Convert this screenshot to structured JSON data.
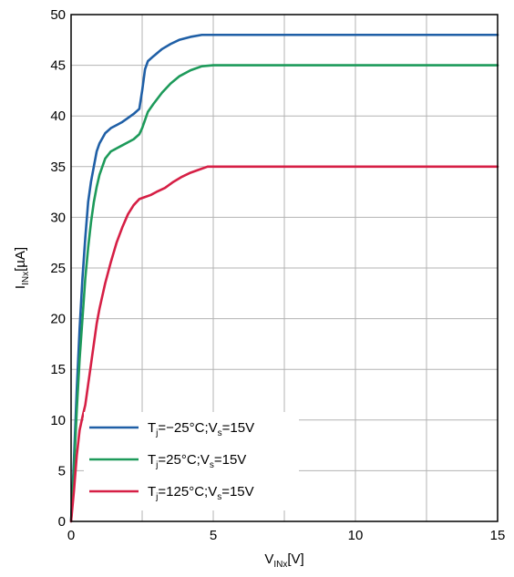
{
  "chart_data": {
    "type": "line",
    "title": "",
    "xlabel": "V_INx [V]",
    "ylabel": "I_INx [µA]",
    "x_axis": {
      "label_main": "V",
      "label_sub": "INx",
      "label_unit": "[V]",
      "range": [
        0,
        15
      ],
      "ticks": [
        0,
        5,
        10,
        15
      ],
      "tick_labels": [
        "0",
        "5",
        "10",
        "15"
      ],
      "grid_step": 2.5
    },
    "y_axis": {
      "label_main": "I",
      "label_sub": "INx",
      "label_unit": "[µA]",
      "range": [
        0,
        50
      ],
      "ticks": [
        0,
        5,
        10,
        15,
        20,
        25,
        30,
        35,
        40,
        45,
        50
      ],
      "tick_labels": [
        "0",
        "5",
        "10",
        "15",
        "20",
        "25",
        "30",
        "35",
        "40",
        "45",
        "50"
      ]
    },
    "grid": true,
    "legend_position": "bottom-left",
    "series": [
      {
        "name": "Tj=−25°C;Vs=15V",
        "legend": {
          "t": "T",
          "j": "j",
          "mid": "=−25°C;V",
          "s": "s",
          "end": "=15V"
        },
        "color": "#1f5fa6",
        "x": [
          0,
          0.1,
          0.2,
          0.3,
          0.4,
          0.5,
          0.6,
          0.7,
          0.8,
          0.9,
          1.0,
          1.2,
          1.4,
          1.6,
          1.8,
          2.0,
          2.2,
          2.4,
          2.5,
          2.6,
          2.7,
          2.9,
          3.2,
          3.5,
          3.8,
          4.2,
          4.6,
          5.0,
          7.5,
          10,
          12.5,
          15
        ],
        "y": [
          0,
          6,
          13,
          19,
          24,
          28,
          31.5,
          33.5,
          35,
          36.5,
          37.3,
          38.3,
          38.8,
          39.1,
          39.4,
          39.8,
          40.2,
          40.7,
          42.5,
          44.6,
          45.4,
          45.9,
          46.6,
          47.1,
          47.5,
          47.8,
          48,
          48,
          48,
          48,
          48,
          48
        ]
      },
      {
        "name": "Tj=25°C;Vs=15V",
        "legend": {
          "t": "T",
          "j": "j",
          "mid": "=25°C;V",
          "s": "s",
          "end": "=15V"
        },
        "color": "#1d9a5a",
        "x": [
          0,
          0.1,
          0.2,
          0.3,
          0.4,
          0.5,
          0.6,
          0.7,
          0.8,
          0.9,
          1.0,
          1.1,
          1.2,
          1.4,
          1.6,
          1.8,
          2.0,
          2.2,
          2.4,
          2.5,
          2.6,
          2.7,
          2.9,
          3.2,
          3.5,
          3.8,
          4.2,
          4.6,
          5.0,
          7.5,
          10,
          12.5,
          15
        ],
        "y": [
          0,
          5,
          11,
          16,
          20,
          24,
          27,
          29.5,
          31.5,
          33,
          34.2,
          35,
          35.8,
          36.5,
          36.8,
          37.1,
          37.4,
          37.7,
          38.2,
          38.8,
          39.6,
          40.4,
          41.2,
          42.3,
          43.2,
          43.9,
          44.5,
          44.9,
          45,
          45,
          45,
          45,
          45
        ]
      },
      {
        "name": "Tj=125°C;Vs=15V",
        "legend": {
          "t": "T",
          "j": "j",
          "mid": "=125°C;V",
          "s": "s",
          "end": "=15V"
        },
        "color": "#d61f45",
        "x": [
          0,
          0.1,
          0.2,
          0.3,
          0.4,
          0.5,
          0.6,
          0.7,
          0.8,
          0.9,
          1.0,
          1.2,
          1.4,
          1.6,
          1.8,
          2.0,
          2.2,
          2.4,
          2.6,
          2.8,
          3.0,
          3.3,
          3.6,
          3.9,
          4.2,
          4.5,
          4.8,
          5.0,
          7.5,
          10,
          12.5,
          15
        ],
        "y": [
          0,
          3,
          6.5,
          9,
          10.3,
          11.5,
          13.5,
          15.5,
          17.5,
          19.5,
          21,
          23.5,
          25.6,
          27.5,
          29,
          30.3,
          31.2,
          31.8,
          32,
          32.2,
          32.5,
          32.9,
          33.5,
          34,
          34.4,
          34.7,
          35,
          35,
          35,
          35,
          35,
          35
        ]
      }
    ]
  }
}
